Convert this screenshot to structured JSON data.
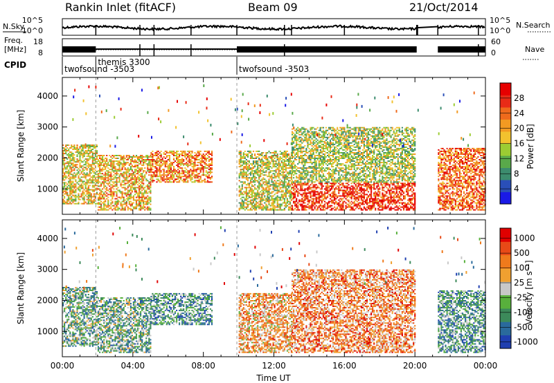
{
  "header": {
    "station": "Rankin Inlet (fitACF)",
    "beam": "Beam 09",
    "date": "21/Oct/2014"
  },
  "strips": {
    "nsky_label": "N.Sky",
    "nsearch_label": "N.Search",
    "nsky_ticks": [
      "10^5",
      "10^0"
    ],
    "freq_label_1": "Freq.",
    "freq_label_2": "[MHz]",
    "freq_ticks": [
      "18",
      "8"
    ],
    "nave_label": "Nave",
    "nave_ticks": [
      "60",
      "0"
    ],
    "cpid_label": "CPID",
    "cpid_segments": [
      {
        "name": "twofsound -3503",
        "start_h": 0.0,
        "end_h": 1.9
      },
      {
        "name": "themis 3300",
        "start_h": 1.9,
        "end_h": 9.9
      },
      {
        "name": "twofsound -3503",
        "start_h": 9.9,
        "end_h": 24.0
      }
    ]
  },
  "chart_data": [
    {
      "type": "heatmap",
      "title": "",
      "xlabel": "Time UT",
      "ylabel": "Slant Range [km]",
      "xlim_h": [
        0,
        24
      ],
      "ylim_km": [
        180,
        4600
      ],
      "x_ticks": [
        "00:00",
        "04:00",
        "08:00",
        "12:00",
        "16:00",
        "20:00",
        "00:00"
      ],
      "y_ticks": [
        1000,
        2000,
        3000,
        4000
      ],
      "colorbar": {
        "label": "Power [dB]",
        "ticks": [
          4,
          8,
          12,
          16,
          20,
          24,
          28
        ],
        "colors": [
          "#1a1ae6",
          "#2a4fb8",
          "#3c8c6e",
          "#59a94a",
          "#9ccc33",
          "#f2c22e",
          "#f29a22",
          "#ef6a1c",
          "#e82b17",
          "#e60000"
        ]
      },
      "data_gaps_h": [
        [
          20.15,
          21.3
        ]
      ],
      "echo_regions": [
        {
          "t0": 0.0,
          "t1": 2.0,
          "r0": 500,
          "r1": 2400,
          "level": 0.55
        },
        {
          "t0": 2.0,
          "t1": 5.0,
          "r0": 300,
          "r1": 2100,
          "level": 0.6
        },
        {
          "t0": 5.0,
          "t1": 8.5,
          "r0": 1200,
          "r1": 2200,
          "level": 0.7
        },
        {
          "t0": 10.0,
          "t1": 13.0,
          "r0": 300,
          "r1": 2200,
          "level": 0.5
        },
        {
          "t0": 13.0,
          "t1": 20.0,
          "r0": 300,
          "r1": 1200,
          "level": 0.85
        },
        {
          "t0": 13.0,
          "t1": 20.0,
          "r0": 1200,
          "r1": 3000,
          "level": 0.45
        },
        {
          "t0": 21.3,
          "t1": 24.0,
          "r0": 300,
          "r1": 2300,
          "level": 0.75
        }
      ]
    },
    {
      "type": "heatmap",
      "title": "",
      "xlabel": "Time UT",
      "ylabel": "Slant Range [km]",
      "xlim_h": [
        0,
        24
      ],
      "ylim_km": [
        180,
        4600
      ],
      "x_ticks": [
        "00:00",
        "04:00",
        "08:00",
        "12:00",
        "16:00",
        "20:00",
        "00:00"
      ],
      "y_ticks": [
        1000,
        2000,
        3000,
        4000
      ],
      "colorbar": {
        "label": "Velocity [m s⁻¹]",
        "ticks": [
          "1000",
          "500",
          "100",
          "25",
          "-25",
          "-100",
          "-500",
          "-1000"
        ],
        "colors": [
          "#1f3fb0",
          "#2a6a9c",
          "#3c8a5a",
          "#58b03c",
          "#c8c8c8",
          "#f0a030",
          "#ef7a1c",
          "#e84a17",
          "#e00000"
        ]
      },
      "data_gaps_h": [
        [
          20.15,
          21.3
        ]
      ],
      "echo_regions": [
        {
          "t0": 0.0,
          "t1": 2.0,
          "r0": 500,
          "r1": 2400,
          "level": 0.35
        },
        {
          "t0": 2.0,
          "t1": 5.0,
          "r0": 300,
          "r1": 2100,
          "level": 0.35
        },
        {
          "t0": 5.0,
          "t1": 8.5,
          "r0": 1200,
          "r1": 2200,
          "level": 0.3
        },
        {
          "t0": 10.0,
          "t1": 13.0,
          "r0": 300,
          "r1": 2200,
          "level": 0.65
        },
        {
          "t0": 13.0,
          "t1": 20.0,
          "r0": 300,
          "r1": 3000,
          "level": 0.7
        },
        {
          "t0": 21.3,
          "t1": 24.0,
          "r0": 300,
          "r1": 2300,
          "level": 0.3
        }
      ]
    }
  ]
}
